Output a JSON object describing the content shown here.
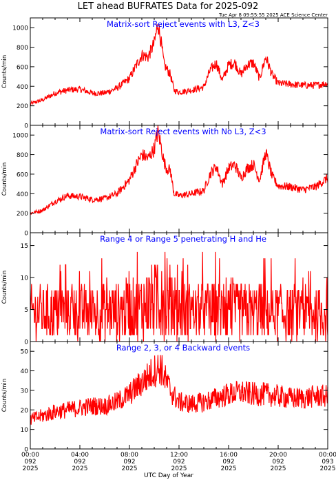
{
  "title": "LET ahead BUFRATES Data for 2025-092",
  "timestamp": "Tue Apr  8 09:55:55 2025 ACE Science Center",
  "xlabel": "UTC Day of Year",
  "x_ticks": [
    {
      "time": "00:00",
      "doy": "092",
      "year": "2025"
    },
    {
      "time": "04:00",
      "doy": "092",
      "year": "2025"
    },
    {
      "time": "08:00",
      "doy": "092",
      "year": "2025"
    },
    {
      "time": "12:00",
      "doy": "092",
      "year": "2025"
    },
    {
      "time": "16:00",
      "doy": "092",
      "year": "2025"
    },
    {
      "time": "20:00",
      "doy": "092",
      "year": "2025"
    },
    {
      "time": "00:00",
      "doy": "093",
      "year": "2025"
    }
  ],
  "colors": {
    "series": "#ff0000",
    "panel_title": "#0000ff",
    "axes": "#000000"
  },
  "chart_data": [
    {
      "type": "line",
      "title": "Matrix-sort Reject events with L3, Z<3",
      "ylabel": "Counts/min",
      "xlim": [
        "2025-092 00:00",
        "2025-093 00:00"
      ],
      "ylim": [
        0,
        1100
      ],
      "yticks": [
        0,
        200,
        400,
        600,
        800,
        1000
      ],
      "x_hours": [
        0,
        1,
        2,
        3,
        4,
        5,
        6,
        7,
        8,
        8.5,
        9,
        9.5,
        10,
        10.3,
        10.5,
        10.8,
        11,
        11.3,
        11.6,
        12,
        13,
        14,
        14.5,
        15,
        15.5,
        16,
        16.5,
        17,
        17.5,
        18,
        18.5,
        19,
        19.5,
        20,
        21,
        22,
        23,
        24
      ],
      "values": [
        220,
        260,
        330,
        360,
        370,
        330,
        330,
        380,
        480,
        600,
        720,
        700,
        840,
        1040,
        900,
        620,
        580,
        520,
        360,
        340,
        360,
        390,
        560,
        640,
        460,
        620,
        640,
        520,
        620,
        640,
        480,
        700,
        520,
        430,
        420,
        410,
        410,
        430
      ]
    },
    {
      "type": "line",
      "title": "Matrix-sort Reject events with No L3, Z<3",
      "ylabel": "Counts/min",
      "xlim": [
        "2025-092 00:00",
        "2025-093 00:00"
      ],
      "ylim": [
        0,
        1100
      ],
      "yticks": [
        0,
        200,
        400,
        600,
        800,
        1000
      ],
      "x_hours": [
        0,
        1,
        2,
        3,
        4,
        5,
        6,
        7,
        8,
        8.5,
        9,
        9.5,
        10,
        10.3,
        10.5,
        10.8,
        11,
        11.3,
        11.6,
        12,
        13,
        14,
        14.5,
        15,
        15.5,
        16,
        16.5,
        17,
        17.5,
        18,
        18.5,
        19,
        19.5,
        20,
        21,
        22,
        23,
        24
      ],
      "values": [
        200,
        230,
        320,
        380,
        370,
        340,
        350,
        400,
        540,
        680,
        800,
        760,
        860,
        1040,
        920,
        720,
        660,
        640,
        400,
        380,
        400,
        430,
        600,
        680,
        500,
        660,
        700,
        560,
        660,
        700,
        540,
        820,
        580,
        480,
        470,
        440,
        470,
        560
      ]
    },
    {
      "type": "line",
      "title": "Range 4 or Range 5 penetrating H and He",
      "ylabel": "Counts/min",
      "xlim": [
        "2025-092 00:00",
        "2025-093 00:00"
      ],
      "ylim": [
        0,
        17
      ],
      "yticks": [
        0,
        5,
        10,
        15
      ],
      "x_hours": [
        0,
        2,
        4,
        6,
        8,
        9,
        9.5,
        10,
        10.5,
        11,
        12,
        14,
        16,
        18,
        20,
        22,
        24
      ],
      "values": [
        4.5,
        4.5,
        4.5,
        4.6,
        5.0,
        5.5,
        6.0,
        6.5,
        6.5,
        5.5,
        4.8,
        4.6,
        4.8,
        4.6,
        4.5,
        4.4,
        4.4
      ]
    },
    {
      "type": "line",
      "title": "Range 2, 3, or 4 Backward events",
      "ylabel": "Counts/min",
      "xlim": [
        "2025-092 00:00",
        "2025-093 00:00"
      ],
      "ylim": [
        0,
        55
      ],
      "yticks": [
        0,
        10,
        20,
        30,
        40,
        50
      ],
      "x_hours": [
        0,
        1,
        2,
        3,
        4,
        5,
        6,
        7,
        8,
        9,
        10,
        10.5,
        11,
        11.5,
        12,
        13,
        14,
        15,
        16,
        17,
        18,
        19,
        20,
        21,
        22,
        23,
        24
      ],
      "values": [
        15,
        17,
        19,
        20,
        21,
        22,
        22,
        24,
        28,
        34,
        40,
        42,
        34,
        28,
        24,
        23,
        24,
        26,
        28,
        29,
        28,
        28,
        27,
        26,
        26,
        27,
        27
      ]
    }
  ]
}
